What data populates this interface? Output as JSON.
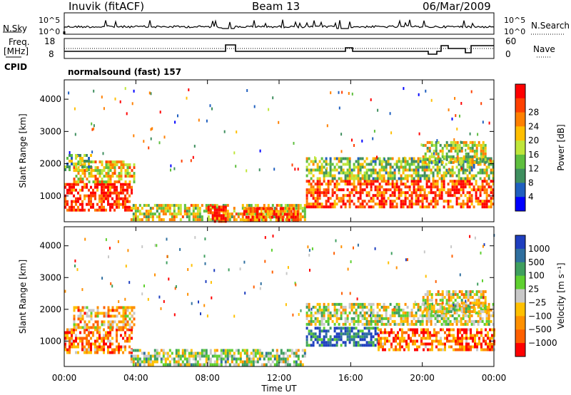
{
  "header": {
    "station": "Inuvik (fitACF)",
    "beam": "Beam 13",
    "date": "06/Mar/2009"
  },
  "top_panels": {
    "nsky_label": "N.Sky",
    "nsky_ticks": [
      "10^5",
      "10^0"
    ],
    "nsearch_label": "N.Search",
    "nsearch_ticks": [
      "10^5",
      "10^0"
    ],
    "freq_label": "Freq.",
    "freq_unit": "[MHz]",
    "freq_ticks": [
      "18",
      "8"
    ],
    "nave_label": "Nave",
    "nave_ticks": [
      "60",
      "0"
    ],
    "cpid_label": "CPID",
    "cpid_value": "normalsound (fast) 157"
  },
  "colors": {
    "power": [
      "#0000ff",
      "#1f5fbf",
      "#3f8f5f",
      "#5fbf3f",
      "#bfe63a",
      "#ffbf00",
      "#ff8000",
      "#ff4000",
      "#ff0000"
    ],
    "velocity": [
      "#ff0000",
      "#ff6000",
      "#ff9000",
      "#ffc000",
      "#c8c8c8",
      "#5fd030",
      "#3f9f5f",
      "#2f6f9f",
      "#1f3fbf"
    ]
  },
  "chart_data": [
    {
      "type": "heatmap",
      "name": "power-panel",
      "xlabel": "",
      "ylabel": "Slant Range [km]",
      "x_ticks": [
        "00:00",
        "04:00",
        "08:00",
        "12:00",
        "16:00",
        "20:00",
        "00:00"
      ],
      "y_ticks": [
        1000,
        2000,
        3000,
        4000
      ],
      "ylim": [
        200,
        4600
      ],
      "xlim_hours": [
        0,
        24
      ],
      "colorbar": {
        "label": "Power [dB]",
        "ticks": [
          "4",
          "8",
          "12",
          "16",
          "20",
          "24",
          "28"
        ],
        "range": [
          0,
          32
        ]
      },
      "echo_regions": [
        {
          "x0": 0.0,
          "x1": 3.8,
          "y0": 600,
          "y1": 1400,
          "level": 0.9
        },
        {
          "x0": 0.5,
          "x1": 3.9,
          "y0": 1400,
          "y1": 2100,
          "level": 0.6
        },
        {
          "x0": 0.0,
          "x1": 1.5,
          "y0": 1800,
          "y1": 2300,
          "level": 0.4
        },
        {
          "x0": 3.7,
          "x1": 13.5,
          "y0": 250,
          "y1": 750,
          "level": 0.55
        },
        {
          "x0": 8.0,
          "x1": 9.0,
          "y0": 250,
          "y1": 700,
          "level": 0.95
        },
        {
          "x0": 10.0,
          "x1": 13.0,
          "y0": 250,
          "y1": 650,
          "level": 0.8
        },
        {
          "x0": 13.5,
          "x1": 24.0,
          "y0": 700,
          "y1": 1500,
          "level": 0.85
        },
        {
          "x0": 13.5,
          "x1": 24.0,
          "y0": 1500,
          "y1": 2200,
          "level": 0.45
        },
        {
          "x0": 20.0,
          "x1": 23.5,
          "y0": 2000,
          "y1": 2700,
          "level": 0.5
        }
      ]
    },
    {
      "type": "heatmap",
      "name": "velocity-panel",
      "xlabel": "Time UT",
      "ylabel": "Slant Range [km]",
      "x_ticks": [
        "00:00",
        "04:00",
        "08:00",
        "12:00",
        "16:00",
        "20:00",
        "00:00"
      ],
      "y_ticks": [
        1000,
        2000,
        3000,
        4000
      ],
      "ylim": [
        200,
        4600
      ],
      "xlim_hours": [
        0,
        24
      ],
      "colorbar": {
        "label": "Velocity [m s⁻¹]",
        "ticks": [
          "1000",
          "500",
          "100",
          "25",
          "−25",
          "−100",
          "−500",
          "−1000"
        ]
      },
      "echo_regions": [
        {
          "x0": 0.0,
          "x1": 3.8,
          "y0": 600,
          "y1": 1400,
          "level": 0.25
        },
        {
          "x0": 0.5,
          "x1": 3.9,
          "y0": 1400,
          "y1": 2100,
          "level": 0.35
        },
        {
          "x0": 3.7,
          "x1": 13.5,
          "y0": 250,
          "y1": 750,
          "level": 0.55
        },
        {
          "x0": 13.5,
          "x1": 17.5,
          "y0": 900,
          "y1": 1450,
          "level": 0.85
        },
        {
          "x0": 17.5,
          "x1": 24.0,
          "y0": 700,
          "y1": 1400,
          "level": 0.2
        },
        {
          "x0": 13.5,
          "x1": 24.0,
          "y0": 1500,
          "y1": 2200,
          "level": 0.5
        },
        {
          "x0": 20.0,
          "x1": 23.5,
          "y0": 1900,
          "y1": 2600,
          "level": 0.45
        }
      ]
    }
  ]
}
